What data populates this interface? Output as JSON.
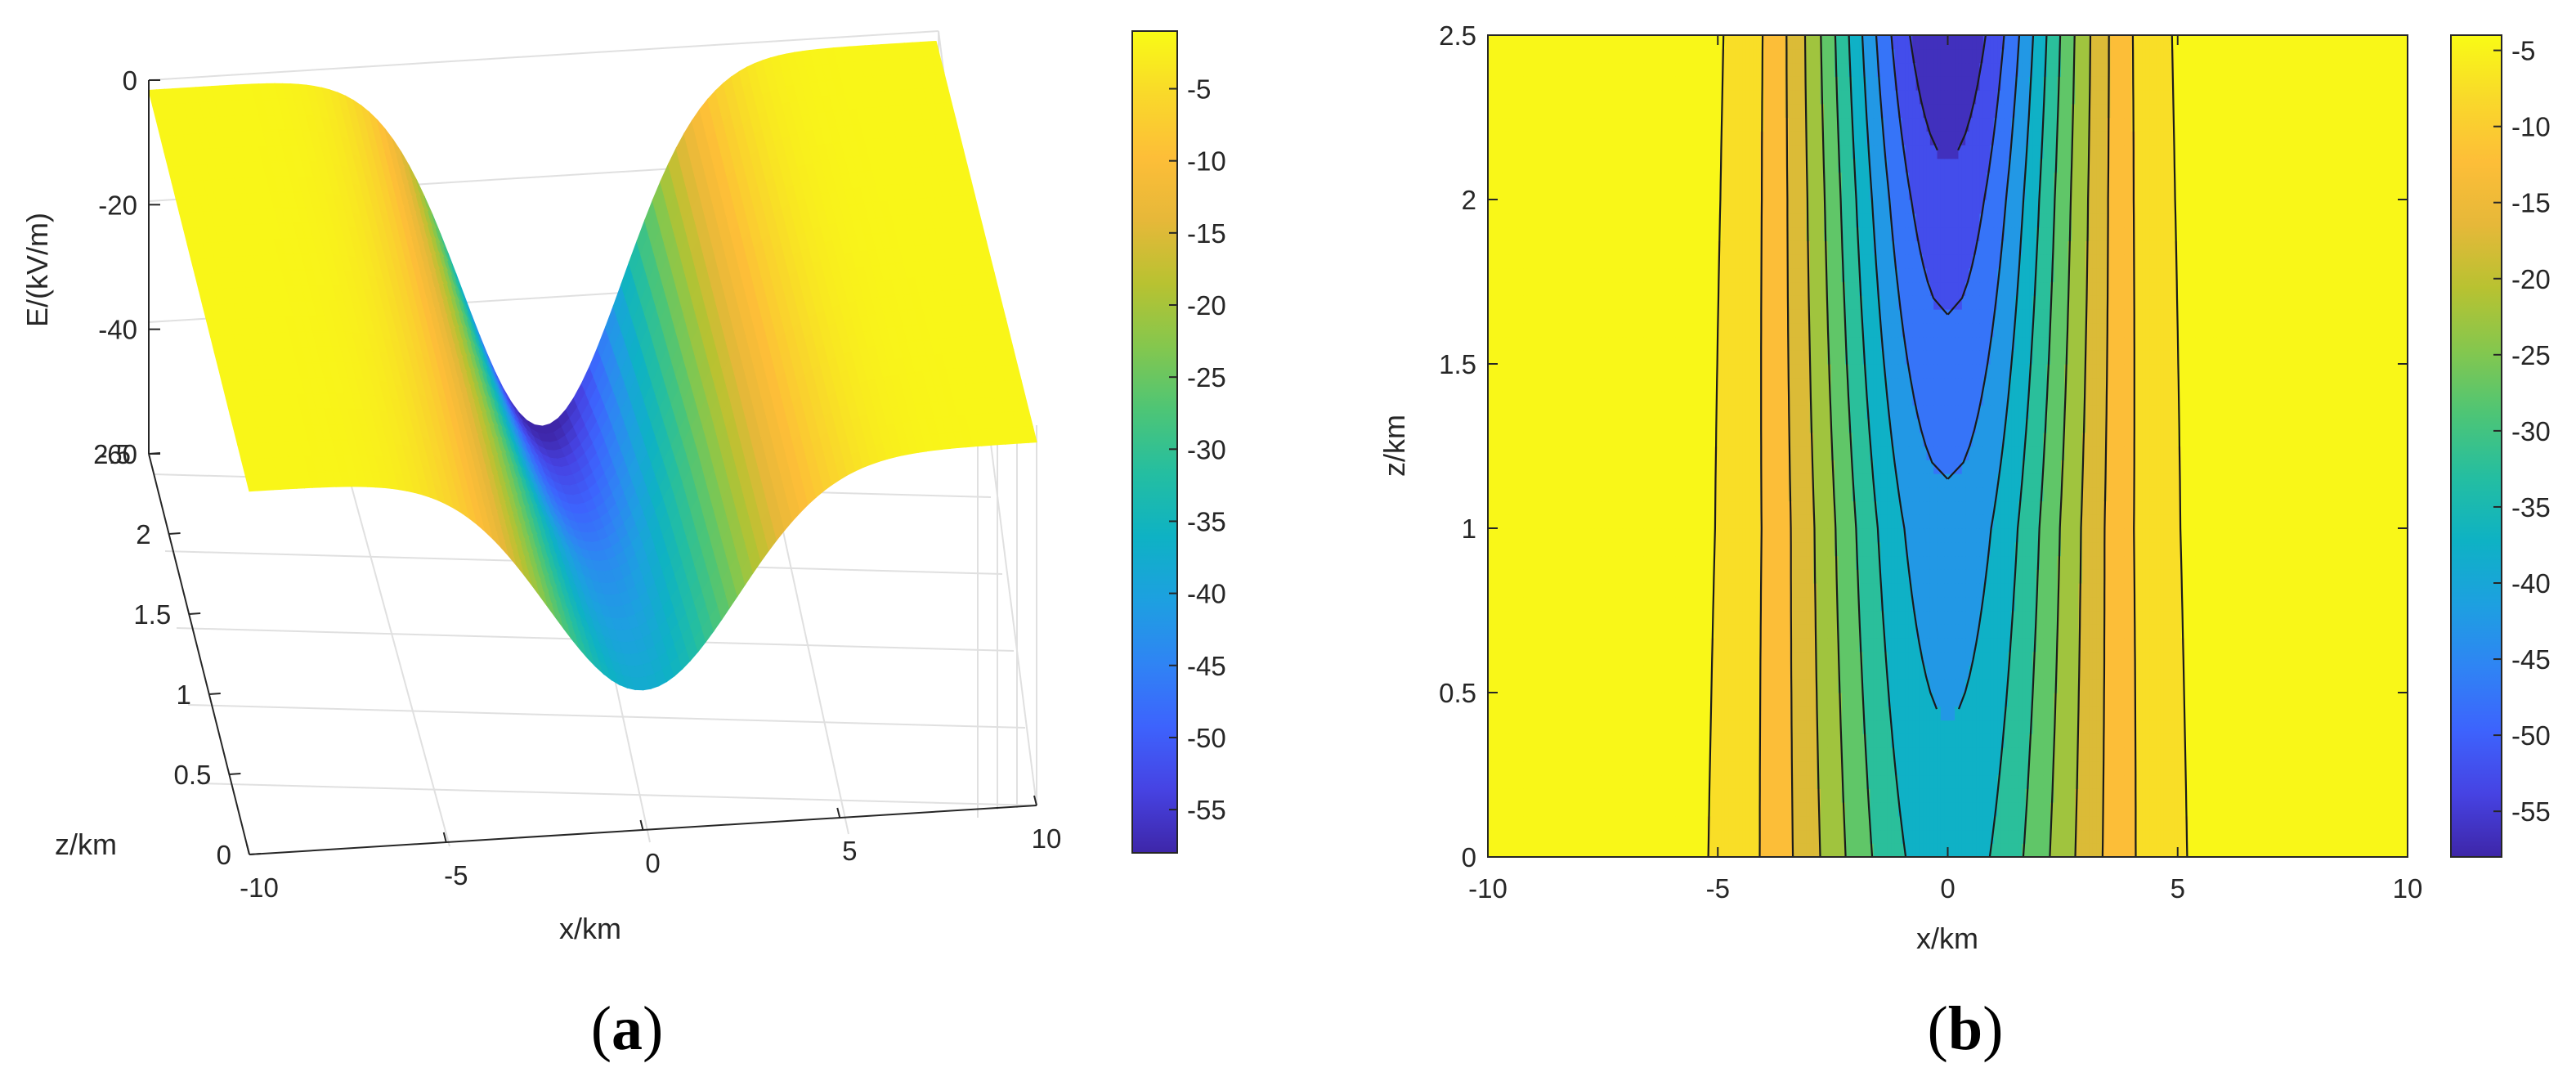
{
  "panels": {
    "a": {
      "label_open": "(",
      "label_letter": "a",
      "label_close": ")"
    },
    "b": {
      "label_open": "(",
      "label_letter": "b",
      "label_close": ")"
    }
  },
  "colors": {
    "parula_stops": [
      "#3e26a8",
      "#4643e3",
      "#3d63fd",
      "#2f84f4",
      "#1da0e0",
      "#0eb2c4",
      "#24bea1",
      "#4dc576",
      "#84c74e",
      "#b8c231",
      "#e6b839",
      "#fdbe38",
      "#f9d92a",
      "#f9fb15"
    ],
    "axis": "#262626",
    "grid": "#e0e0e0",
    "contour_line": "#1a1a1a"
  },
  "chart_data": [
    {
      "type": "surface",
      "title": "",
      "xlabel": "x/km",
      "ylabel": "z/km",
      "zlabel": "E/(kV/m)",
      "xlim": [
        -10,
        10
      ],
      "ylim": [
        0,
        2.5
      ],
      "zlim": [
        -60,
        0
      ],
      "x_ticks": [
        "-10",
        "-5",
        "0",
        "5",
        "10"
      ],
      "y_ticks": [
        "0",
        "0.5",
        "1",
        "1.5",
        "2",
        "2.5"
      ],
      "z_ticks": [
        "0",
        "-20",
        "-40",
        "-60"
      ],
      "colorbar": {
        "min": -58,
        "max": -1,
        "ticks": [
          "-5",
          "-10",
          "-15",
          "-20",
          "-25",
          "-30",
          "-35",
          "-40",
          "-45",
          "-50",
          "-55"
        ]
      },
      "E_min_at_x0_by_z": {
        "z": [
          0,
          0.5,
          1,
          1.5,
          2,
          2.5
        ],
        "E": [
          -36,
          -39,
          -42,
          -47,
          -52,
          -58
        ]
      },
      "grid": true
    },
    {
      "type": "contour",
      "title": "",
      "xlabel": "x/km",
      "ylabel": "z/km",
      "xlim": [
        -10,
        10
      ],
      "ylim": [
        0,
        2.5
      ],
      "x_ticks": [
        "-10",
        "-5",
        "0",
        "5",
        "10"
      ],
      "y_ticks": [
        "0",
        "0.5",
        "1",
        "1.5",
        "2",
        "2.5"
      ],
      "contour_levels": [
        -55,
        -50,
        -45,
        -40,
        -35,
        -30,
        -25,
        -20,
        -15,
        -10,
        -5
      ],
      "colorbar": {
        "min": -58,
        "max": -4,
        "ticks": [
          "-5",
          "-10",
          "-15",
          "-20",
          "-25",
          "-30",
          "-35",
          "-40",
          "-45",
          "-50",
          "-55"
        ]
      },
      "grid": false
    }
  ]
}
